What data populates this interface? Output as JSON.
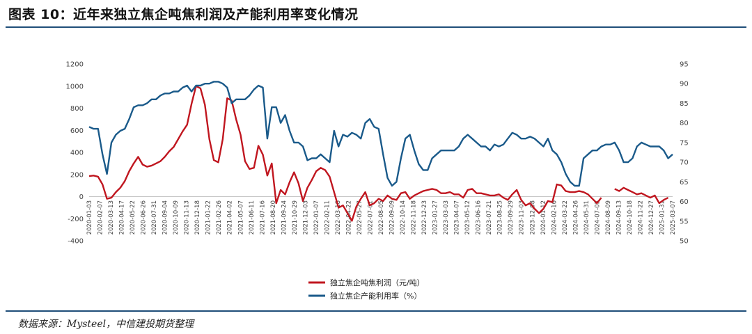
{
  "figure_title": "图表 10：近年来独立焦企吨焦利润及产能利用率变化情况",
  "source": "数据来源：Mysteel，中信建投期货整理",
  "chart_data": {
    "type": "line",
    "title": "",
    "y_left": {
      "ylim": [
        -400,
        1200
      ],
      "ticks": [
        -400,
        -200,
        0,
        200,
        400,
        600,
        800,
        1000,
        1200
      ]
    },
    "y_right": {
      "ylim": [
        50,
        95
      ],
      "ticks": [
        50,
        55,
        60,
        65,
        70,
        75,
        80,
        85,
        90,
        95
      ]
    },
    "grid": false,
    "legend_position": "bottom-center",
    "colors": {
      "profit": "#c0161f",
      "utilization": "#1a5a8a",
      "title_rule": "#1f4e79"
    },
    "x_ticks": [
      "2020-01-03",
      "2020-02-07",
      "2020-03-13",
      "2020-04-17",
      "2020-05-22",
      "2020-06-26",
      "2020-07-31",
      "2020-09-04",
      "2020-10-09",
      "2020-11-13",
      "2020-12-18",
      "2021-01-22",
      "2021-02-26",
      "2021-04-02",
      "2021-05-07",
      "2021-06-11",
      "2021-07-16",
      "2021-08-20",
      "2021-09-24",
      "2021-10-29",
      "2021-12-03",
      "2022-01-07",
      "2022-02-11",
      "2022-03-18",
      "2022-04-22",
      "2022-05-27",
      "2022-07-01",
      "2022-08-05",
      "2022-09-09",
      "2022-10-14",
      "2022-11-18",
      "2022-12-23",
      "2023-01-27",
      "2023-03-03",
      "2023-04-07",
      "2023-05-12",
      "2023-06-16",
      "2023-07-21",
      "2023-08-25",
      "2023-09-29",
      "2023-11-03",
      "2023-12-08",
      "2024-01-12",
      "2024-02-16",
      "2024-03-22",
      "2024-04-26",
      "2024-05-31",
      "2024-07-05",
      "2024-08-09",
      "2024-09-13",
      "2024-10-18",
      "2024-11-22",
      "2024-12-27",
      "2025-01-31",
      "2025-03-07"
    ],
    "series": [
      {
        "name": "独立焦企吨焦利润（元/吨）",
        "axis": "left",
        "points": [
          [
            0,
            185
          ],
          [
            1,
            190
          ],
          [
            2,
            180
          ],
          [
            3,
            110
          ],
          [
            4,
            -20
          ],
          [
            5,
            -10
          ],
          [
            6,
            40
          ],
          [
            7,
            80
          ],
          [
            8,
            140
          ],
          [
            9,
            230
          ],
          [
            10,
            300
          ],
          [
            11,
            360
          ],
          [
            12,
            290
          ],
          [
            13,
            270
          ],
          [
            14,
            280
          ],
          [
            15,
            300
          ],
          [
            16,
            320
          ],
          [
            17,
            360
          ],
          [
            18,
            410
          ],
          [
            19,
            450
          ],
          [
            20,
            520
          ],
          [
            21,
            590
          ],
          [
            22,
            650
          ],
          [
            23,
            840
          ],
          [
            24,
            1000
          ],
          [
            25,
            980
          ],
          [
            26,
            830
          ],
          [
            27,
            520
          ],
          [
            28,
            330
          ],
          [
            29,
            310
          ],
          [
            30,
            520
          ],
          [
            31,
            890
          ],
          [
            32,
            870
          ],
          [
            33,
            700
          ],
          [
            34,
            560
          ],
          [
            35,
            320
          ],
          [
            36,
            250
          ],
          [
            37,
            260
          ],
          [
            38,
            460
          ],
          [
            39,
            380
          ],
          [
            40,
            190
          ],
          [
            41,
            300
          ],
          [
            42,
            -60
          ],
          [
            43,
            60
          ],
          [
            44,
            20
          ],
          [
            45,
            130
          ],
          [
            46,
            220
          ],
          [
            47,
            120
          ],
          [
            48,
            -40
          ],
          [
            49,
            80
          ],
          [
            50,
            150
          ],
          [
            51,
            230
          ],
          [
            52,
            260
          ],
          [
            53,
            240
          ],
          [
            54,
            180
          ],
          [
            55,
            40
          ],
          [
            56,
            -100
          ],
          [
            57,
            -80
          ],
          [
            58,
            -150
          ],
          [
            59,
            -220
          ],
          [
            60,
            -90
          ],
          [
            61,
            -20
          ],
          [
            62,
            40
          ],
          [
            63,
            -80
          ],
          [
            64,
            -60
          ],
          [
            65,
            -20
          ],
          [
            66,
            -40
          ],
          [
            67,
            10
          ],
          [
            68,
            -20
          ],
          [
            69,
            -30
          ],
          [
            70,
            30
          ],
          [
            71,
            40
          ],
          [
            72,
            -20
          ],
          [
            73,
            10
          ],
          [
            74,
            30
          ],
          [
            75,
            50
          ],
          [
            76,
            60
          ],
          [
            77,
            70
          ],
          [
            78,
            60
          ],
          [
            79,
            30
          ],
          [
            80,
            30
          ],
          [
            81,
            40
          ],
          [
            82,
            20
          ],
          [
            83,
            20
          ],
          [
            84,
            -10
          ],
          [
            85,
            60
          ],
          [
            86,
            70
          ],
          [
            87,
            30
          ],
          [
            88,
            30
          ],
          [
            89,
            20
          ],
          [
            90,
            10
          ],
          [
            91,
            10
          ],
          [
            92,
            20
          ],
          [
            93,
            -10
          ],
          [
            94,
            -30
          ],
          [
            95,
            20
          ],
          [
            96,
            60
          ],
          [
            97,
            -30
          ],
          [
            98,
            -80
          ],
          [
            99,
            -60
          ],
          [
            100,
            -110
          ],
          [
            101,
            -150
          ],
          [
            102,
            -110
          ],
          [
            103,
            -40
          ],
          [
            104,
            -50
          ],
          [
            105,
            110
          ],
          [
            106,
            100
          ],
          [
            107,
            50
          ],
          [
            108,
            40
          ],
          [
            109,
            40
          ],
          [
            110,
            50
          ],
          [
            111,
            40
          ],
          [
            112,
            20
          ],
          [
            113,
            -20
          ],
          [
            114,
            -60
          ],
          [
            115,
            -10
          ],
          [
            116,
            null
          ],
          [
            117,
            null
          ],
          [
            118,
            70
          ],
          [
            119,
            50
          ],
          [
            120,
            80
          ],
          [
            121,
            60
          ],
          [
            122,
            40
          ],
          [
            123,
            20
          ],
          [
            124,
            30
          ],
          [
            125,
            10
          ],
          [
            126,
            -10
          ],
          [
            127,
            10
          ],
          [
            128,
            -60
          ],
          [
            129,
            -30
          ],
          [
            130,
            -10
          ]
        ]
      },
      {
        "name": "独立焦企产能利用率（%）",
        "axis": "right",
        "points": [
          [
            0,
            79
          ],
          [
            1,
            78.5
          ],
          [
            2,
            78.5
          ],
          [
            3,
            72
          ],
          [
            4,
            67
          ],
          [
            5,
            75
          ],
          [
            6,
            77
          ],
          [
            7,
            78
          ],
          [
            8,
            78.5
          ],
          [
            9,
            81
          ],
          [
            10,
            84
          ],
          [
            11,
            84.5
          ],
          [
            12,
            84.5
          ],
          [
            13,
            85
          ],
          [
            14,
            86
          ],
          [
            15,
            86
          ],
          [
            16,
            87
          ],
          [
            17,
            87.5
          ],
          [
            18,
            87.5
          ],
          [
            19,
            88
          ],
          [
            20,
            88
          ],
          [
            21,
            89
          ],
          [
            22,
            89.5
          ],
          [
            23,
            88
          ],
          [
            24,
            89.5
          ],
          [
            25,
            89.5
          ],
          [
            26,
            90
          ],
          [
            27,
            90
          ],
          [
            28,
            90.5
          ],
          [
            29,
            90.5
          ],
          [
            30,
            90
          ],
          [
            31,
            89
          ],
          [
            32,
            85
          ],
          [
            33,
            86
          ],
          [
            34,
            86
          ],
          [
            35,
            86
          ],
          [
            36,
            87
          ],
          [
            37,
            88.5
          ],
          [
            38,
            89.5
          ],
          [
            39,
            89
          ],
          [
            40,
            76
          ],
          [
            41,
            84
          ],
          [
            42,
            84
          ],
          [
            43,
            80
          ],
          [
            44,
            82
          ],
          [
            45,
            78
          ],
          [
            46,
            75
          ],
          [
            47,
            75
          ],
          [
            48,
            74
          ],
          [
            49,
            70.5
          ],
          [
            50,
            71
          ],
          [
            51,
            71
          ],
          [
            52,
            72
          ],
          [
            53,
            71
          ],
          [
            54,
            70
          ],
          [
            55,
            78
          ],
          [
            56,
            74
          ],
          [
            57,
            77
          ],
          [
            58,
            76.5
          ],
          [
            59,
            77.5
          ],
          [
            60,
            77
          ],
          [
            61,
            76
          ],
          [
            62,
            80
          ],
          [
            63,
            81
          ],
          [
            64,
            79
          ],
          [
            65,
            78.5
          ],
          [
            66,
            72
          ],
          [
            67,
            66
          ],
          [
            68,
            64
          ],
          [
            69,
            65
          ],
          [
            70,
            71
          ],
          [
            71,
            76
          ],
          [
            72,
            77
          ],
          [
            73,
            73
          ],
          [
            74,
            69.5
          ],
          [
            75,
            68
          ],
          [
            76,
            68
          ],
          [
            77,
            71
          ],
          [
            78,
            72
          ],
          [
            79,
            73
          ],
          [
            80,
            73
          ],
          [
            81,
            73
          ],
          [
            82,
            73
          ],
          [
            83,
            74
          ],
          [
            84,
            76
          ],
          [
            85,
            77
          ],
          [
            86,
            76
          ],
          [
            87,
            75
          ],
          [
            88,
            74
          ],
          [
            89,
            74
          ],
          [
            90,
            73
          ],
          [
            91,
            74.5
          ],
          [
            92,
            74
          ],
          [
            93,
            74.5
          ],
          [
            94,
            76
          ],
          [
            95,
            77.5
          ],
          [
            96,
            77
          ],
          [
            97,
            76
          ],
          [
            98,
            76
          ],
          [
            99,
            76.5
          ],
          [
            100,
            76
          ],
          [
            101,
            75
          ],
          [
            102,
            74
          ],
          [
            103,
            76
          ],
          [
            104,
            73
          ],
          [
            105,
            72
          ],
          [
            106,
            70
          ],
          [
            107,
            67
          ],
          [
            108,
            65
          ],
          [
            109,
            64
          ],
          [
            110,
            64
          ],
          [
            111,
            71
          ],
          [
            112,
            72
          ],
          [
            113,
            73
          ],
          [
            114,
            73
          ],
          [
            115,
            74
          ],
          [
            116,
            74.5
          ],
          [
            117,
            74.5
          ],
          [
            118,
            75
          ],
          [
            119,
            73
          ],
          [
            120,
            70
          ],
          [
            121,
            70
          ],
          [
            122,
            71
          ],
          [
            123,
            74
          ],
          [
            124,
            75
          ],
          [
            125,
            74.5
          ],
          [
            126,
            74
          ],
          [
            127,
            74
          ],
          [
            128,
            74
          ],
          [
            129,
            73
          ],
          [
            130,
            71
          ],
          [
            131,
            72
          ]
        ]
      }
    ]
  }
}
